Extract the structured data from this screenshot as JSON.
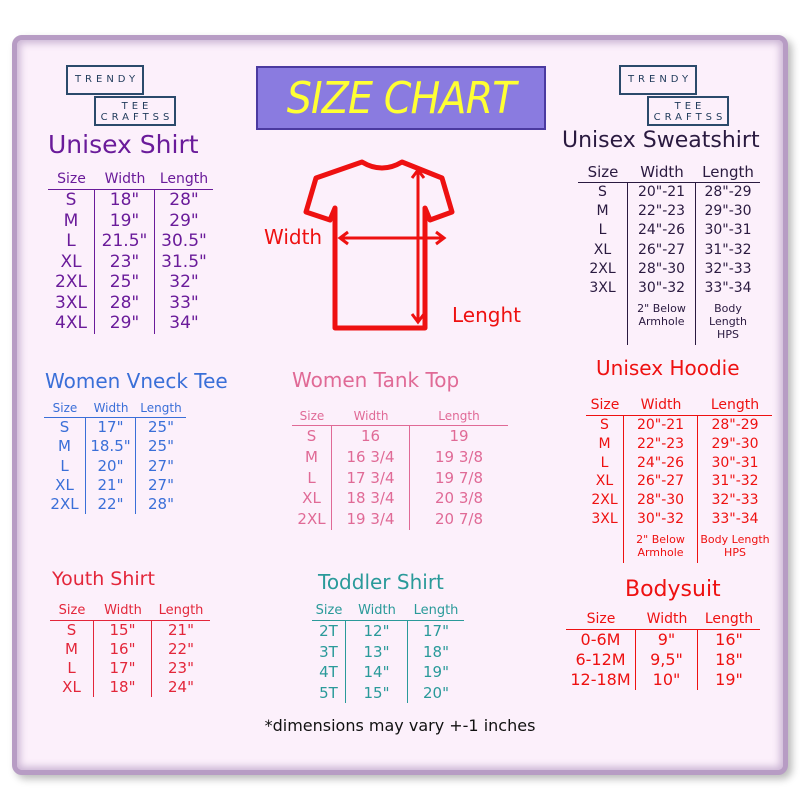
{
  "brand": {
    "line1": "TRENDY",
    "line2": "TEE",
    "line3": "CRAFTSS"
  },
  "title": "SIZE CHART",
  "diagram": {
    "width_label": "Width",
    "length_label": "Lenght"
  },
  "footnote": "*dimensions may vary +-1 inches",
  "colors": {
    "title_bg": "#8a7be0",
    "title_text": "#ffff33",
    "unisex_shirt": "#6a1b9a",
    "sweatshirt": "#2a1a40",
    "vneck": "#3a6fd8",
    "tank": "#e06a96",
    "hoodie": "#ee1111",
    "youth": "#e3263a",
    "toddler": "#2a9a9a",
    "bodysuit": "#ee1111",
    "tee_outline": "#ee1111"
  },
  "tables": {
    "unisex_shirt": {
      "title": "Unisex Shirt",
      "headers": [
        "Size",
        "Width",
        "Length"
      ],
      "rows": [
        [
          "S",
          "18\"",
          "28\""
        ],
        [
          "M",
          "19\"",
          "29\""
        ],
        [
          "L",
          "21.5\"",
          "30.5\""
        ],
        [
          "XL",
          "23\"",
          "31.5\""
        ],
        [
          "2XL",
          "25\"",
          "32\""
        ],
        [
          "3XL",
          "28\"",
          "33\""
        ],
        [
          "4XL",
          "29\"",
          "34\""
        ]
      ]
    },
    "sweatshirt": {
      "title": "Unisex Sweatshirt",
      "headers": [
        "Size",
        "Width",
        "Length"
      ],
      "rows": [
        [
          "S",
          "20\"-21",
          "28\"-29"
        ],
        [
          "M",
          "22\"-23",
          "29\"-30"
        ],
        [
          "L",
          "24\"-26",
          "30\"-31"
        ],
        [
          "XL",
          "26\"-27",
          "31\"-32"
        ],
        [
          "2XL",
          "28\"-30",
          "32\"-33"
        ],
        [
          "3XL",
          "30\"-32",
          "33\"-34"
        ]
      ],
      "notes": [
        "",
        "2\" Below Armhole",
        "Body Length HPS"
      ]
    },
    "vneck": {
      "title": "Women Vneck Tee",
      "headers": [
        "Size",
        "Width",
        "Length"
      ],
      "rows": [
        [
          "S",
          "17\"",
          "25\""
        ],
        [
          "M",
          "18.5\"",
          "25\""
        ],
        [
          "L",
          "20\"",
          "27\""
        ],
        [
          "XL",
          "21\"",
          "27\""
        ],
        [
          "2XL",
          "22\"",
          "28\""
        ]
      ]
    },
    "tank": {
      "title": "Women Tank Top",
      "headers": [
        "Size",
        "Width",
        "Length"
      ],
      "rows": [
        [
          "S",
          "16",
          "19"
        ],
        [
          "M",
          "16 3/4",
          "19 3/8"
        ],
        [
          "L",
          "17 3/4",
          "19 7/8"
        ],
        [
          "XL",
          "18 3/4",
          "20 3/8"
        ],
        [
          "2XL",
          "19 3/4",
          "20 7/8"
        ]
      ]
    },
    "hoodie": {
      "title": "Unisex Hoodie",
      "headers": [
        "Size",
        "Width",
        "Length"
      ],
      "rows": [
        [
          "S",
          "20\"-21",
          "28\"-29"
        ],
        [
          "M",
          "22\"-23",
          "29\"-30"
        ],
        [
          "L",
          "24\"-26",
          "30\"-31"
        ],
        [
          "XL",
          "26\"-27",
          "31\"-32"
        ],
        [
          "2XL",
          "28\"-30",
          "32\"-33"
        ],
        [
          "3XL",
          "30\"-32",
          "33\"-34"
        ]
      ],
      "notes": [
        "",
        "2\" Below Armhole",
        "Body Length HPS"
      ]
    },
    "youth": {
      "title": "Youth Shirt",
      "headers": [
        "Size",
        "Width",
        "Length"
      ],
      "rows": [
        [
          "S",
          "15\"",
          "21\""
        ],
        [
          "M",
          "16\"",
          "22\""
        ],
        [
          "L",
          "17\"",
          "23\""
        ],
        [
          "XL",
          "18\"",
          "24\""
        ]
      ]
    },
    "toddler": {
      "title": "Toddler Shirt",
      "headers": [
        "Size",
        "Width",
        "Length"
      ],
      "rows": [
        [
          "2T",
          "12\"",
          "17\""
        ],
        [
          "3T",
          "13\"",
          "18\""
        ],
        [
          "4T",
          "14\"",
          "19\""
        ],
        [
          "5T",
          "15\"",
          "20\""
        ]
      ]
    },
    "bodysuit": {
      "title": "Bodysuit",
      "headers": [
        "Size",
        "Width",
        "Length"
      ],
      "rows": [
        [
          "0-6M",
          "9\"",
          "16\""
        ],
        [
          "6-12M",
          "9,5\"",
          "18\""
        ],
        [
          "12-18M",
          "10\"",
          "19\""
        ]
      ]
    }
  }
}
